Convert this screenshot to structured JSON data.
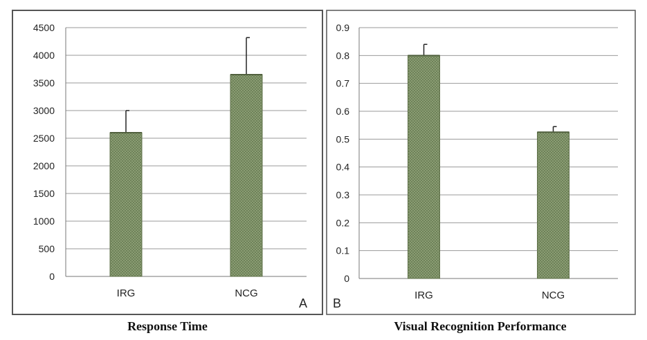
{
  "chart_data": [
    {
      "type": "bar",
      "panel_label": "A",
      "caption": "Response Time",
      "categories": [
        "IRG",
        "NCG"
      ],
      "values": [
        2600,
        3650
      ],
      "error_upper": [
        3000,
        4320
      ],
      "ylim": [
        0,
        4500
      ],
      "yticks": [
        "0",
        "500",
        "1000",
        "1500",
        "2000",
        "2500",
        "3000",
        "3500",
        "4000",
        "4500"
      ],
      "grid": true,
      "bar_color": "#7d9068"
    },
    {
      "type": "bar",
      "panel_label": "B",
      "caption": "Visual Recognition Performance",
      "categories": [
        "IRG",
        "NCG"
      ],
      "values": [
        0.8,
        0.525
      ],
      "error_upper": [
        0.84,
        0.545
      ],
      "ylim": [
        0,
        0.9
      ],
      "yticks": [
        "0",
        "0.1",
        "0.2",
        "0.3",
        "0.4",
        "0.5",
        "0.6",
        "0.7",
        "0.8",
        "0.9"
      ],
      "grid": true,
      "bar_color": "#7d9068"
    }
  ]
}
